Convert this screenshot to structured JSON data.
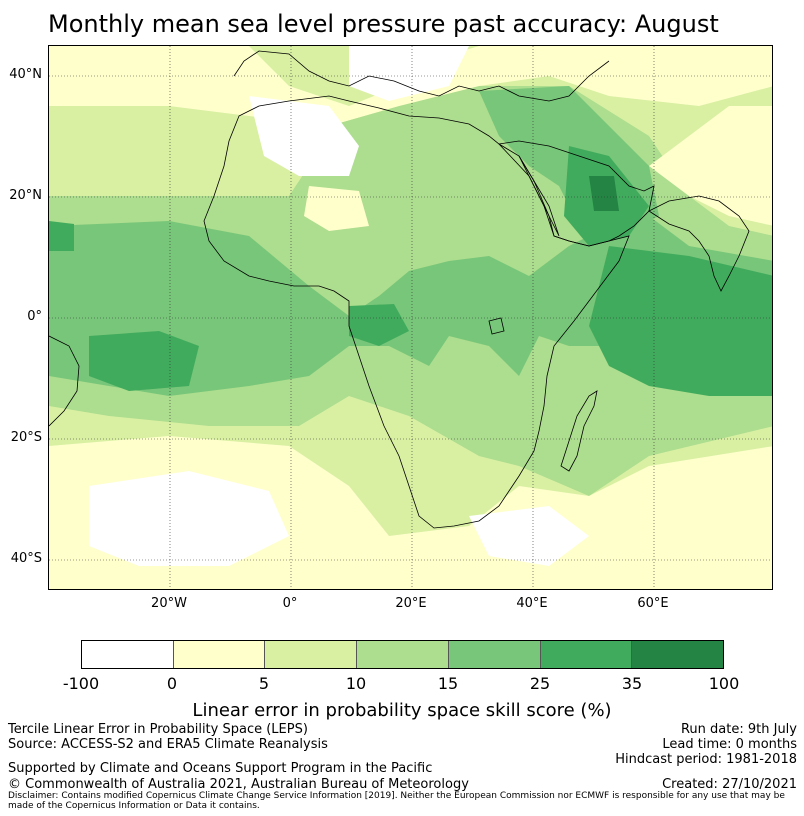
{
  "title": "Monthly mean sea level pressure past accuracy: August",
  "map": {
    "lat_labels": [
      "40°N",
      "20°N",
      "0°",
      "20°S",
      "40°S"
    ],
    "lon_labels": [
      "20°W",
      "0°",
      "20°E",
      "40°E",
      "60°E"
    ],
    "region": "Africa, Atlantic Ocean, Middle East and western Indian Ocean"
  },
  "colorbar": {
    "label": "Linear error in probability space skill score (%)",
    "ticks": [
      "-100",
      "0",
      "5",
      "10",
      "15",
      "25",
      "35",
      "100"
    ],
    "colors": [
      "#ffffff",
      "#ffffcc",
      "#d9f0a3",
      "#addd8e",
      "#78c679",
      "#41ab5d",
      "#238443"
    ]
  },
  "footer": {
    "method": "Tercile Linear Error in Probability Space (LEPS)",
    "source": "Source: ACCESS-S2 and ERA5 Climate Reanalysis",
    "support": "Supported by Climate and Oceans Support Program in the Pacific",
    "copyright": "© Commonwealth of Australia 2021, Australian Bureau of Meteorology",
    "run_date": "Run date: 9th July",
    "lead_time": "Lead time: 0 months",
    "hindcast": "Hindcast period: 1981-2018",
    "created": "Created: 27/10/2021",
    "disclaimer": "Disclaimer: Contains modified Copernicus Climate Change Service Information [2019]. Neither the European Commission nor ECMWF is responsible for any use that may be made of the Copernicus Information or Data it contains."
  }
}
